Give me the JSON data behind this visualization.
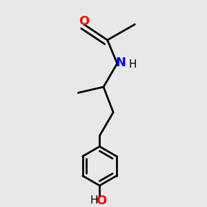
{
  "background_color": "#e8e8e8",
  "bond_color": "#000000",
  "bond_width": 2.0,
  "atom_colors": {
    "O": "#ff0000",
    "N": "#0000ff",
    "C": "#000000",
    "H": "#000000"
  },
  "font_size_atom": 13,
  "font_size_h": 11,
  "xlim": [
    0.15,
    0.85
  ],
  "ylim": [
    0.02,
    1.02
  ]
}
